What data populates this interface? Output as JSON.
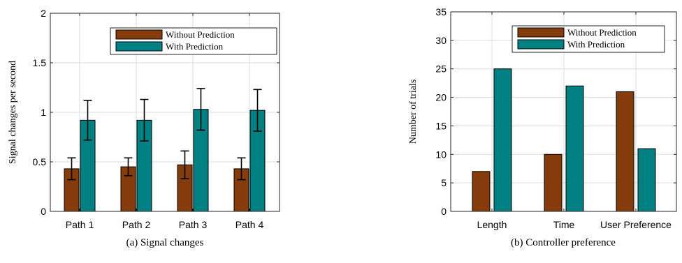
{
  "colors": {
    "without": "#843c0c",
    "with": "#008080",
    "grid": "#dcdcdc",
    "axis": "#262626"
  },
  "chart_data": [
    {
      "type": "bar",
      "caption": "(a)  Signal changes",
      "ylabel": "Signal changes per second",
      "xlabel": "",
      "categories": [
        "Path 1",
        "Path 2",
        "Path 3",
        "Path 4"
      ],
      "ylim": [
        0,
        2
      ],
      "yticks": [
        0,
        0.5,
        1,
        1.5,
        2
      ],
      "ytick_labels": [
        "0",
        "0.5",
        "1",
        "1.5",
        "2"
      ],
      "grid": true,
      "legend_position": "top-right",
      "series": [
        {
          "name": "Without Prediction",
          "values": [
            0.43,
            0.45,
            0.47,
            0.43
          ],
          "errors": [
            0.11,
            0.09,
            0.14,
            0.11
          ]
        },
        {
          "name": "With Prediction",
          "values": [
            0.92,
            0.92,
            1.03,
            1.02
          ],
          "errors": [
            0.2,
            0.21,
            0.21,
            0.21
          ]
        }
      ]
    },
    {
      "type": "bar",
      "caption": "(b)  Controller preference",
      "ylabel": "Number of trials",
      "xlabel": "",
      "categories": [
        "Length",
        "Time",
        "User Preference"
      ],
      "ylim": [
        0,
        35
      ],
      "yticks": [
        0,
        5,
        10,
        15,
        20,
        25,
        30,
        35
      ],
      "ytick_labels": [
        "0",
        "5",
        "10",
        "15",
        "20",
        "25",
        "30",
        "35"
      ],
      "grid": true,
      "legend_position": "top-right",
      "series": [
        {
          "name": "Without Prediction",
          "values": [
            7,
            10,
            21
          ]
        },
        {
          "name": "With Prediction",
          "values": [
            25,
            22,
            11
          ]
        }
      ]
    }
  ]
}
